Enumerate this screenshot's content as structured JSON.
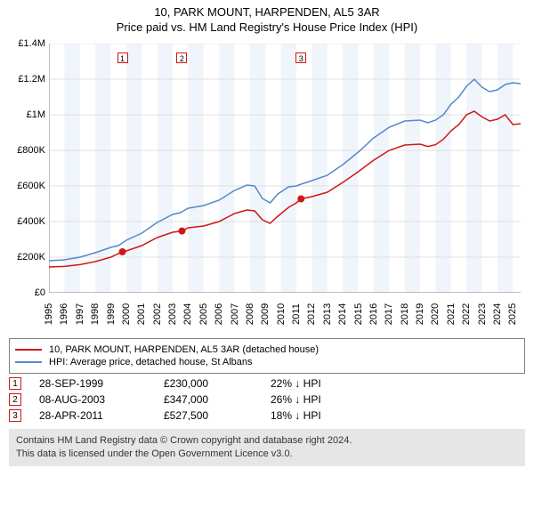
{
  "title": {
    "line1": "10, PARK MOUNT, HARPENDEN, AL5 3AR",
    "line2": "Price paid vs. HM Land Registry's House Price Index (HPI)"
  },
  "chart": {
    "type": "line",
    "background_color": "#ffffff",
    "band_color": "#f0f5fb",
    "grid_color": "#e0e0e0",
    "axis_color": "#808080",
    "xlim": [
      1995,
      2025.5
    ],
    "ylim": [
      0,
      1400000
    ],
    "ytick_step": 200000,
    "y_labels": [
      "£0",
      "£200K",
      "£400K",
      "£600K",
      "£800K",
      "£1M",
      "£1.2M",
      "£1.4M"
    ],
    "xticks": [
      1995,
      1996,
      1997,
      1998,
      1999,
      2000,
      2001,
      2002,
      2003,
      2004,
      2005,
      2006,
      2007,
      2008,
      2009,
      2010,
      2011,
      2012,
      2013,
      2014,
      2015,
      2016,
      2017,
      2018,
      2019,
      2020,
      2021,
      2022,
      2023,
      2024,
      2025
    ],
    "label_fontsize": 11,
    "series": [
      {
        "name": "HPI: Average price, detached house, St Albans",
        "color": "#5588cc",
        "line_width": 1.5,
        "data": [
          [
            1995,
            180000
          ],
          [
            1996,
            185000
          ],
          [
            1997,
            200000
          ],
          [
            1998,
            225000
          ],
          [
            1999,
            255000
          ],
          [
            1999.5,
            265000
          ],
          [
            2000,
            295000
          ],
          [
            2001,
            335000
          ],
          [
            2002,
            395000
          ],
          [
            2003,
            440000
          ],
          [
            2003.5,
            450000
          ],
          [
            2004,
            475000
          ],
          [
            2005,
            490000
          ],
          [
            2006,
            520000
          ],
          [
            2007,
            575000
          ],
          [
            2007.8,
            605000
          ],
          [
            2008.3,
            600000
          ],
          [
            2008.8,
            530000
          ],
          [
            2009.3,
            505000
          ],
          [
            2009.8,
            555000
          ],
          [
            2010.5,
            595000
          ],
          [
            2011,
            600000
          ],
          [
            2011.3,
            610000
          ],
          [
            2012,
            630000
          ],
          [
            2013,
            660000
          ],
          [
            2014,
            720000
          ],
          [
            2015,
            790000
          ],
          [
            2016,
            870000
          ],
          [
            2017,
            930000
          ],
          [
            2018,
            965000
          ],
          [
            2019,
            970000
          ],
          [
            2019.5,
            955000
          ],
          [
            2020,
            970000
          ],
          [
            2020.5,
            1000000
          ],
          [
            2021,
            1060000
          ],
          [
            2021.5,
            1100000
          ],
          [
            2022,
            1160000
          ],
          [
            2022.5,
            1200000
          ],
          [
            2023,
            1155000
          ],
          [
            2023.5,
            1130000
          ],
          [
            2024,
            1140000
          ],
          [
            2024.5,
            1170000
          ],
          [
            2025,
            1180000
          ],
          [
            2025.5,
            1175000
          ]
        ]
      },
      {
        "name": "10, PARK MOUNT, HARPENDEN, AL5 3AR (detached house)",
        "color": "#d01717",
        "line_width": 1.5,
        "data": [
          [
            1995,
            145000
          ],
          [
            1996,
            148000
          ],
          [
            1997,
            158000
          ],
          [
            1998,
            175000
          ],
          [
            1999,
            200000
          ],
          [
            1999.75,
            230000
          ],
          [
            2000,
            235000
          ],
          [
            2001,
            265000
          ],
          [
            2002,
            310000
          ],
          [
            2003,
            340000
          ],
          [
            2003.6,
            347000
          ],
          [
            2004,
            365000
          ],
          [
            2005,
            375000
          ],
          [
            2006,
            400000
          ],
          [
            2007,
            445000
          ],
          [
            2007.8,
            465000
          ],
          [
            2008.3,
            460000
          ],
          [
            2008.8,
            410000
          ],
          [
            2009.3,
            390000
          ],
          [
            2009.8,
            430000
          ],
          [
            2010.5,
            480000
          ],
          [
            2011,
            505000
          ],
          [
            2011.3,
            527500
          ],
          [
            2012,
            540000
          ],
          [
            2013,
            565000
          ],
          [
            2014,
            620000
          ],
          [
            2015,
            680000
          ],
          [
            2016,
            745000
          ],
          [
            2017,
            800000
          ],
          [
            2018,
            830000
          ],
          [
            2019,
            835000
          ],
          [
            2019.5,
            822000
          ],
          [
            2020,
            832000
          ],
          [
            2020.5,
            862000
          ],
          [
            2021,
            910000
          ],
          [
            2021.5,
            945000
          ],
          [
            2022,
            1000000
          ],
          [
            2022.5,
            1020000
          ],
          [
            2023,
            988000
          ],
          [
            2023.5,
            965000
          ],
          [
            2024,
            975000
          ],
          [
            2024.5,
            1000000
          ],
          [
            2025,
            945000
          ],
          [
            2025.5,
            950000
          ]
        ]
      }
    ],
    "markers": [
      {
        "n": "1",
        "year": 1999.75,
        "value": 230000,
        "color": "#d01717"
      },
      {
        "n": "2",
        "year": 2003.6,
        "value": 347000,
        "color": "#d01717"
      },
      {
        "n": "3",
        "year": 2011.3,
        "value": 527500,
        "color": "#d01717"
      }
    ]
  },
  "legend": {
    "items": [
      {
        "color": "#d01717",
        "label": "10, PARK MOUNT, HARPENDEN, AL5 3AR (detached house)"
      },
      {
        "color": "#5588cc",
        "label": "HPI: Average price, detached house, St Albans"
      }
    ]
  },
  "sales": [
    {
      "n": "1",
      "date": "28-SEP-1999",
      "price": "£230,000",
      "diff": "22% ↓ HPI",
      "color": "#d01717"
    },
    {
      "n": "2",
      "date": "08-AUG-2003",
      "price": "£347,000",
      "diff": "26% ↓ HPI",
      "color": "#d01717"
    },
    {
      "n": "3",
      "date": "28-APR-2011",
      "price": "£527,500",
      "diff": "18% ↓ HPI",
      "color": "#d01717"
    }
  ],
  "footer": {
    "line1": "Contains HM Land Registry data © Crown copyright and database right 2024.",
    "line2": "This data is licensed under the Open Government Licence v3.0."
  }
}
